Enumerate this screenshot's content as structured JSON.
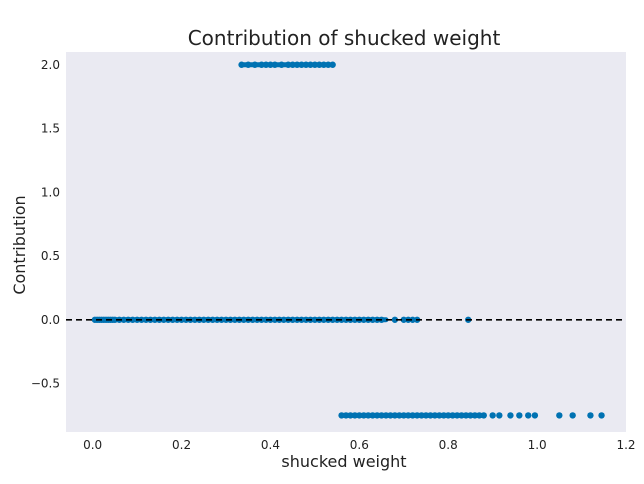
{
  "chart_data": {
    "type": "scatter",
    "title": "Contribution of shucked weight",
    "xlabel": "shucked weight",
    "ylabel": "Contribution",
    "xlim": [
      -0.06,
      1.2
    ],
    "ylim": [
      -0.88,
      2.1
    ],
    "xticks": [
      0.0,
      0.2,
      0.4,
      0.6,
      0.8,
      1.0,
      1.2
    ],
    "xtick_labels": [
      "0.0",
      "0.2",
      "0.4",
      "0.6",
      "0.8",
      "1.0",
      "1.2"
    ],
    "yticks": [
      -0.5,
      0.0,
      0.5,
      1.0,
      1.5,
      2.0
    ],
    "ytick_labels": [
      "−0.5",
      "0.0",
      "0.5",
      "1.0",
      "1.5",
      "2.0"
    ],
    "reference_line": {
      "y": 0.0,
      "style": "dashed",
      "color": "#000000"
    },
    "grid": false,
    "background_color": "#eaeaf2",
    "marker_color": "#0072b2",
    "series": [
      {
        "x": [
          0.005,
          0.01,
          0.015,
          0.02,
          0.025,
          0.03,
          0.035,
          0.04,
          0.045,
          0.05,
          0.06,
          0.07,
          0.08,
          0.09,
          0.1,
          0.11,
          0.12,
          0.13,
          0.14,
          0.15,
          0.16,
          0.17,
          0.18,
          0.19,
          0.2,
          0.21,
          0.22,
          0.23,
          0.24,
          0.25,
          0.26,
          0.27,
          0.28,
          0.29,
          0.3,
          0.31,
          0.32,
          0.33,
          0.34,
          0.35,
          0.36,
          0.37,
          0.38,
          0.39,
          0.4,
          0.41,
          0.42,
          0.43,
          0.44,
          0.45,
          0.46,
          0.47,
          0.48,
          0.49,
          0.5,
          0.51,
          0.52,
          0.53,
          0.54,
          0.55,
          0.56,
          0.57,
          0.58,
          0.59,
          0.6,
          0.61,
          0.62,
          0.63,
          0.64,
          0.65,
          0.68,
          0.7,
          0.71,
          0.72,
          0.73,
          0.845
        ],
        "y": [
          0,
          0,
          0,
          0,
          0,
          0,
          0,
          0,
          0,
          0,
          0,
          0,
          0,
          0,
          0,
          0,
          0,
          0,
          0,
          0,
          0,
          0,
          0,
          0,
          0,
          0,
          0,
          0,
          0,
          0,
          0,
          0,
          0,
          0,
          0,
          0,
          0,
          0,
          0,
          0,
          0,
          0,
          0,
          0,
          0,
          0,
          0,
          0,
          0,
          0,
          0,
          0,
          0,
          0,
          0,
          0,
          0,
          0,
          0,
          0,
          0,
          0,
          0,
          0,
          0,
          0,
          0,
          0,
          0,
          0,
          0,
          0,
          0,
          0,
          0,
          0
        ]
      },
      {
        "x": [
          0.335,
          0.35,
          0.365,
          0.38,
          0.39,
          0.4,
          0.41,
          0.425,
          0.44,
          0.45,
          0.46,
          0.47,
          0.48,
          0.49,
          0.5,
          0.51,
          0.52,
          0.53,
          0.54
        ],
        "y": [
          2,
          2,
          2,
          2,
          2,
          2,
          2,
          2,
          2,
          2,
          2,
          2,
          2,
          2,
          2,
          2,
          2,
          2,
          2
        ]
      },
      {
        "x": [
          0.56,
          0.57,
          0.58,
          0.59,
          0.6,
          0.61,
          0.62,
          0.63,
          0.64,
          0.65,
          0.66,
          0.67,
          0.68,
          0.69,
          0.7,
          0.71,
          0.72,
          0.73,
          0.74,
          0.75,
          0.76,
          0.77,
          0.78,
          0.79,
          0.8,
          0.81,
          0.82,
          0.83,
          0.84,
          0.85,
          0.86,
          0.87,
          0.88,
          0.9,
          0.915,
          0.94,
          0.96,
          0.98,
          0.995,
          1.05,
          1.08,
          1.12,
          1.145
        ],
        "y": [
          -0.75,
          -0.75,
          -0.75,
          -0.75,
          -0.75,
          -0.75,
          -0.75,
          -0.75,
          -0.75,
          -0.75,
          -0.75,
          -0.75,
          -0.75,
          -0.75,
          -0.75,
          -0.75,
          -0.75,
          -0.75,
          -0.75,
          -0.75,
          -0.75,
          -0.75,
          -0.75,
          -0.75,
          -0.75,
          -0.75,
          -0.75,
          -0.75,
          -0.75,
          -0.75,
          -0.75,
          -0.75,
          -0.75,
          -0.75,
          -0.75,
          -0.75,
          -0.75,
          -0.75,
          -0.75,
          -0.75,
          -0.75,
          -0.75,
          -0.75
        ]
      }
    ]
  }
}
